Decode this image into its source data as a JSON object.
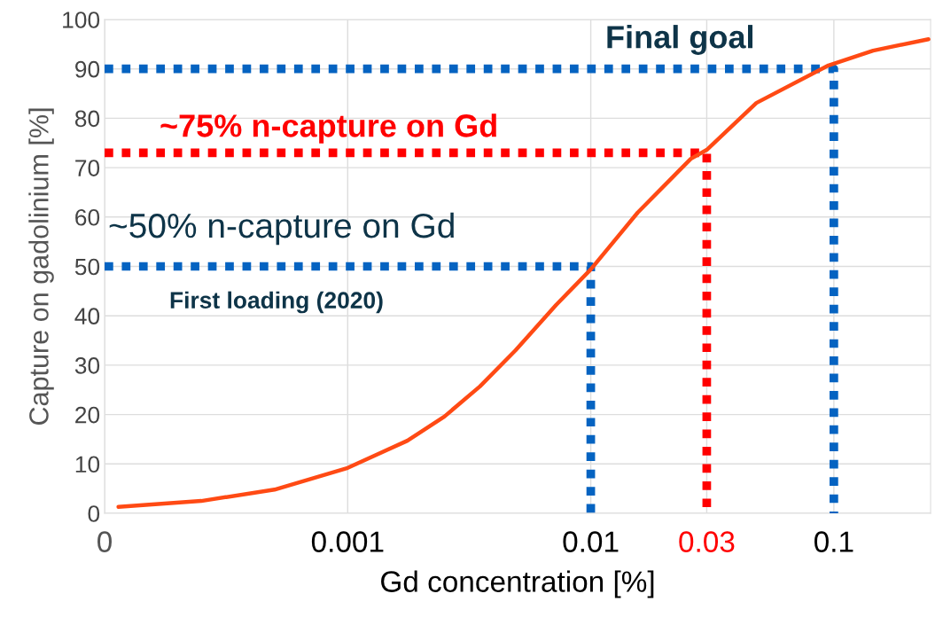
{
  "chart_data": {
    "type": "line",
    "xlabel": "Gd concentration [%]",
    "ylabel": "Capture on gadolinium [%]",
    "log": "x",
    "xlim": [
      0.0001,
      0.25
    ],
    "xticks": [
      {
        "value": 0.0001,
        "label": "0"
      },
      0.001,
      0.01,
      0.03,
      0.1
    ],
    "ylim": [
      0,
      100
    ],
    "yticks": [
      0,
      10,
      20,
      30,
      40,
      50,
      60,
      70,
      80,
      90,
      100
    ],
    "grid": true,
    "line_style": "solid",
    "marker": "none",
    "series": [
      {
        "color": "#0563c1",
        "line_style": "dotted",
        "x": [
          0.0001,
          0.01,
          0.01
        ],
        "values": [
          50,
          50,
          0
        ]
      },
      {
        "color": "#ff0000",
        "line_style": "dotted",
        "x": [
          0.0001,
          0.03,
          0.03
        ],
        "values": [
          73,
          73,
          0
        ]
      },
      {
        "color": "#0563c1",
        "line_style": "dotted",
        "x": [
          0.0001,
          0.1,
          0.1
        ],
        "values": [
          90,
          90,
          0
        ]
      },
      {
        "color": "#ff4a14",
        "x": [
          0.000114,
          0.00025,
          0.0005,
          0.001,
          0.00176,
          0.0025,
          0.0035,
          0.0049,
          0.0072,
          0.01,
          0.0156,
          0.0258,
          0.03,
          0.048,
          0.095,
          0.145,
          0.245
        ],
        "values": [
          1.3,
          2.5,
          4.8,
          9.2,
          14.7,
          19.6,
          25.7,
          33,
          42.2,
          49.4,
          60.9,
          71.8,
          73.6,
          83.1,
          90.7,
          93.7,
          96
        ]
      }
    ],
    "annotations": [
      "Final goal",
      "~75% n-capture on Gd",
      "~50% n-capture on Gd",
      "First loading (2020)"
    ]
  }
}
